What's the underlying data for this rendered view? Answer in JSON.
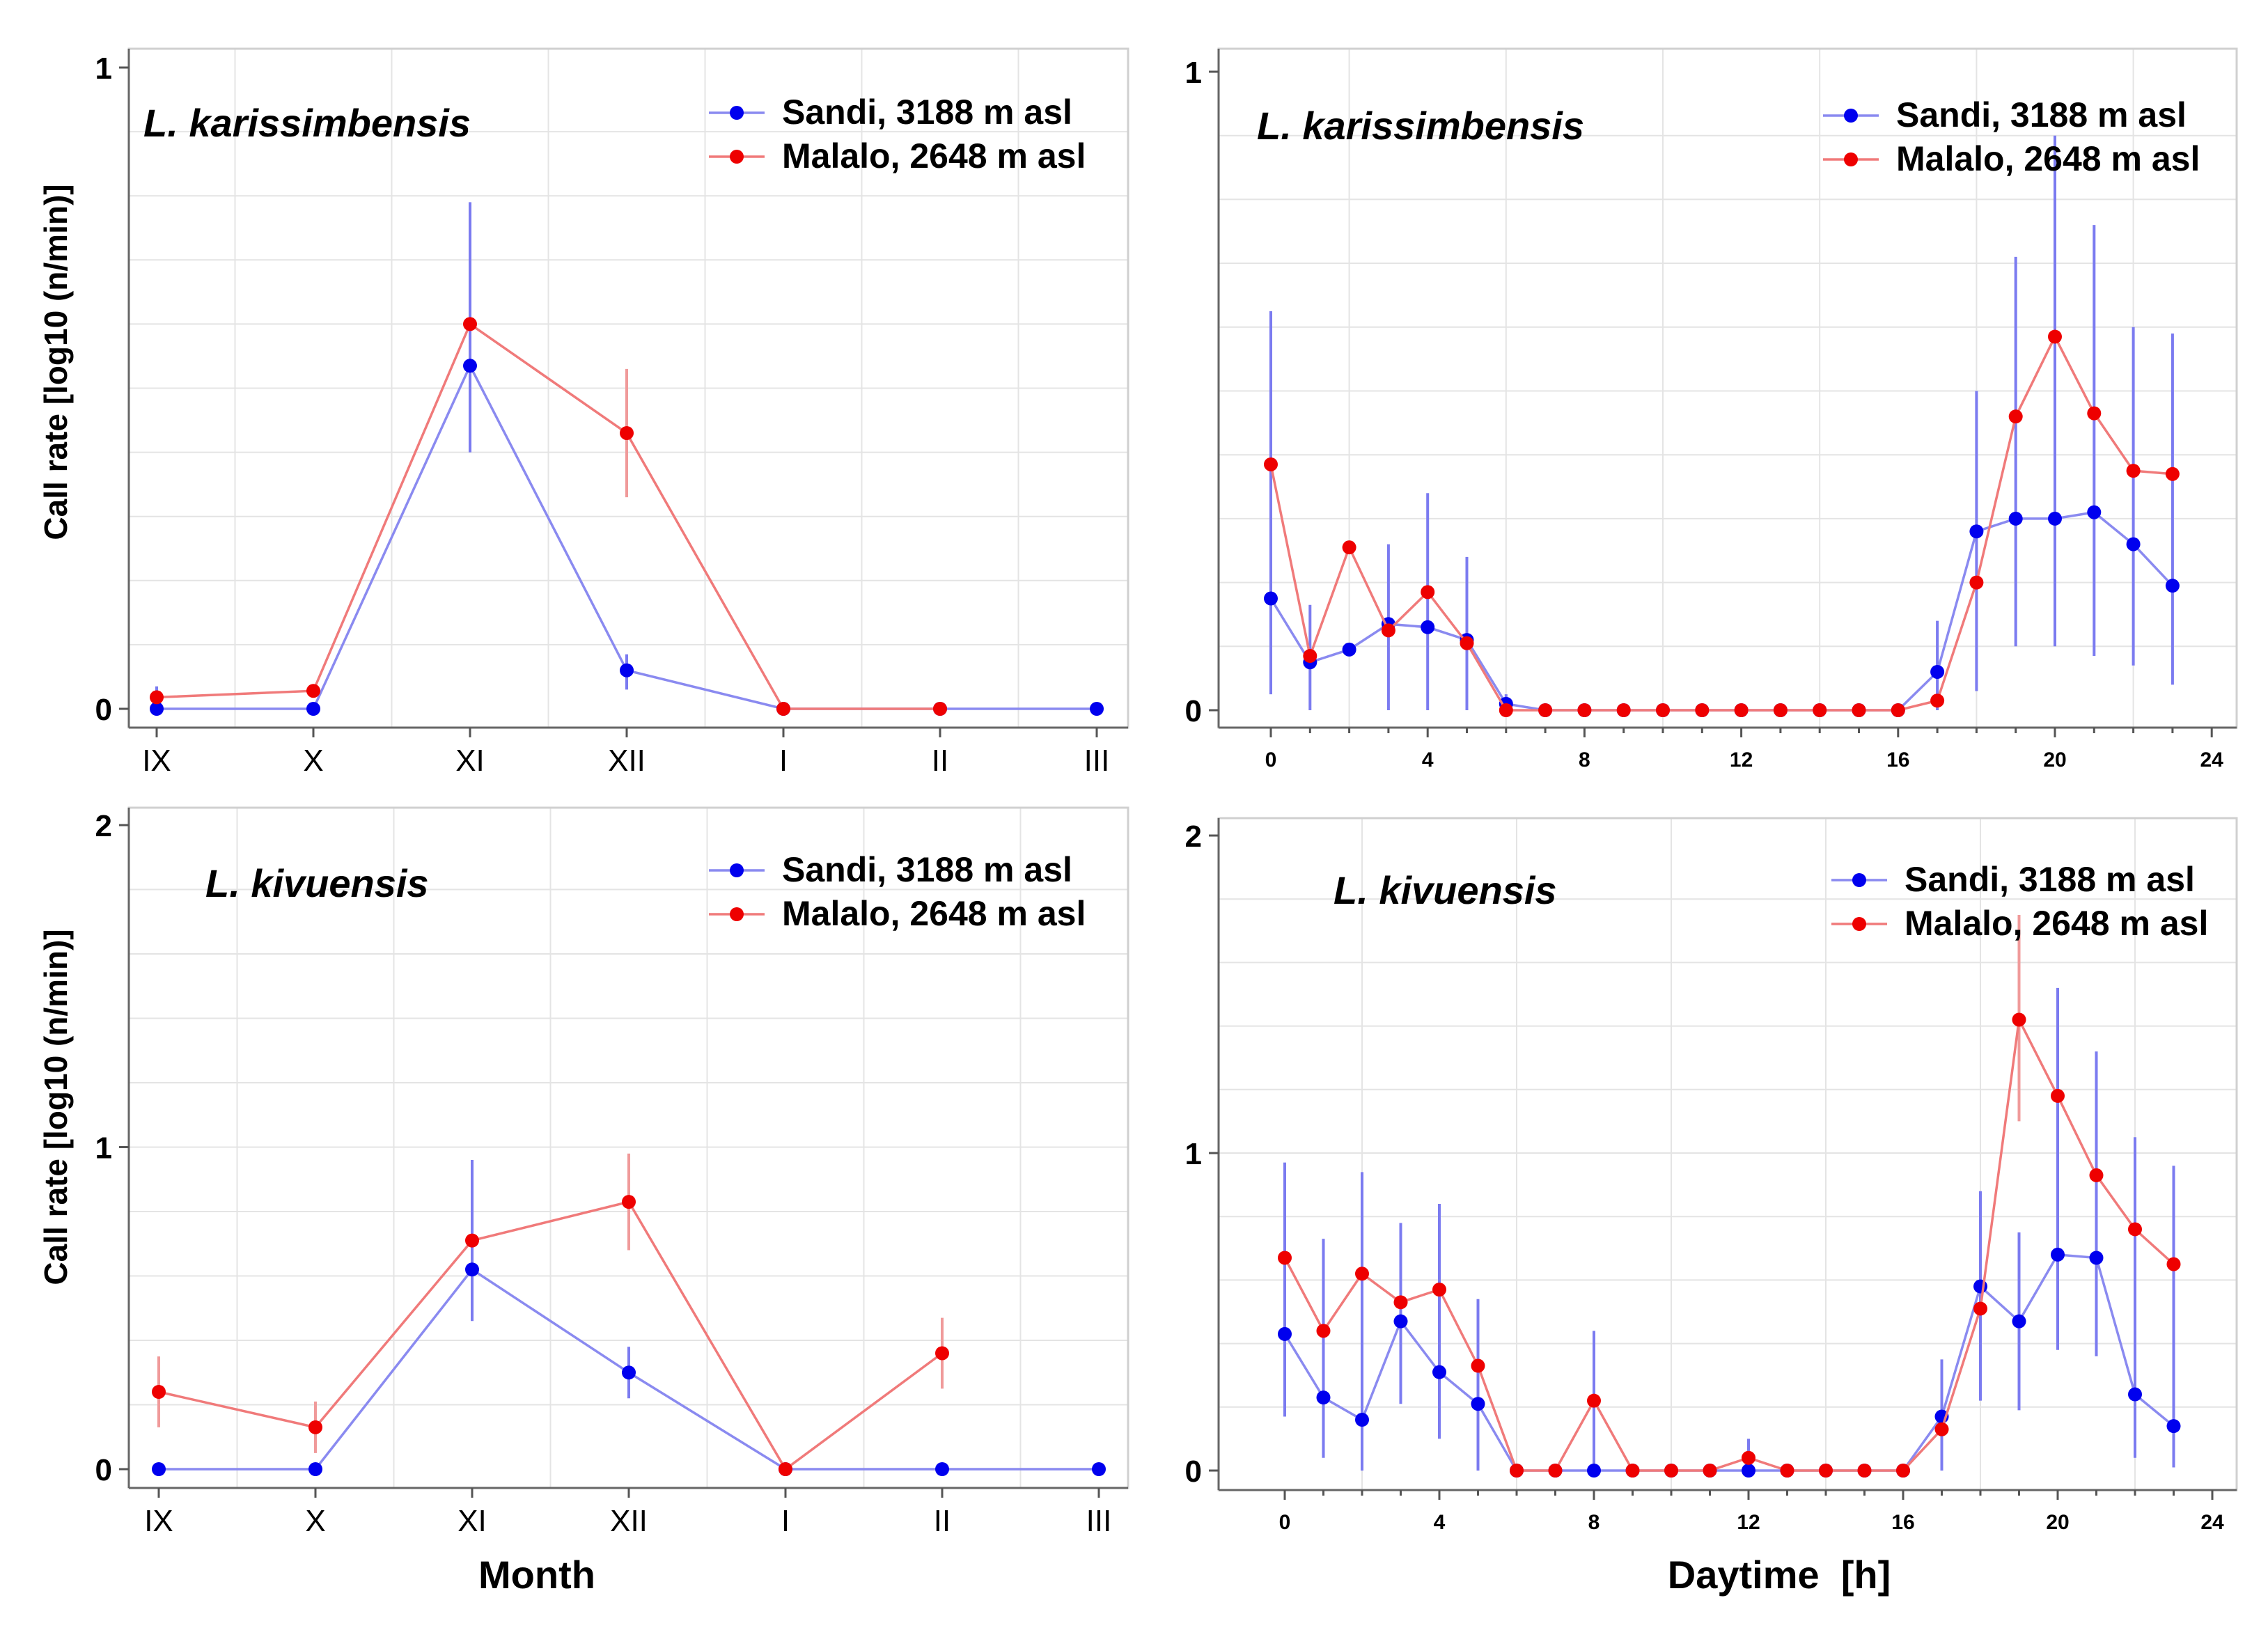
{
  "colors": {
    "sandi": "#0000ee",
    "malalo": "#ee0000",
    "sandi_line": "#8a8af0",
    "malalo_line": "#f07a7a",
    "sandi_err": "#7b7bf0",
    "malalo_err": "#f09a9a"
  },
  "axis_titles": {
    "y_top": "Call rate [log10 (n/min)]",
    "y_bottom": "Call rate [log10 (n/min)]",
    "x_left": "Month",
    "x_right": "Daytime  [h]"
  },
  "chart_data": [
    {
      "type": "line",
      "title": "L. karissimbensis",
      "x_axis": "month",
      "categories": [
        "IX",
        "X",
        "XI",
        "XII",
        "I",
        "II",
        "III"
      ],
      "ylim": [
        0,
        1
      ],
      "yticks": [
        "0",
        "1"
      ],
      "legend": "top-right",
      "series": [
        {
          "name": "Sandi, 3188 m asl",
          "key": "sandi",
          "values": [
            0,
            0,
            0.535,
            0.06,
            0,
            0,
            0
          ],
          "err": [
            [
              0,
              0.035
            ],
            null,
            [
              0.4,
              0.79
            ],
            [
              0.03,
              0.085
            ],
            null,
            null,
            null
          ]
        },
        {
          "name": "Malalo, 2648 m asl",
          "key": "malalo",
          "values": [
            0.018,
            0.028,
            0.6,
            0.43,
            0,
            0,
            null
          ],
          "err": [
            null,
            null,
            null,
            [
              0.33,
              0.53
            ],
            null,
            null,
            null
          ]
        }
      ]
    },
    {
      "type": "line",
      "title": "L. karissimbensis",
      "x_axis": "hour",
      "xlim": [
        -1,
        24.5
      ],
      "xticks": [
        0,
        4,
        8,
        12,
        16,
        20,
        24
      ],
      "ylim": [
        0,
        1
      ],
      "yticks": [
        "0",
        "1"
      ],
      "legend": "top-right",
      "series": [
        {
          "name": "Sandi, 3188 m asl",
          "key": "sandi",
          "x": [
            0,
            1,
            2,
            3,
            4,
            5,
            6,
            7,
            8,
            9,
            10,
            11,
            12,
            13,
            14,
            15,
            16,
            17,
            18,
            19,
            20,
            21,
            22,
            23
          ],
          "values": [
            0.175,
            0.075,
            0.095,
            0.135,
            0.13,
            0.11,
            0.01,
            0,
            0,
            0,
            0,
            0,
            0,
            0,
            0,
            0,
            0,
            0.06,
            0.28,
            0.3,
            0.3,
            0.31,
            0.26,
            0.195
          ],
          "err": [
            [
              0.025,
              0.625
            ],
            [
              0,
              0.165
            ],
            null,
            [
              0,
              0.26
            ],
            [
              0,
              0.34
            ],
            [
              0,
              0.24
            ],
            [
              0,
              0.025
            ],
            null,
            null,
            null,
            null,
            null,
            null,
            null,
            null,
            null,
            null,
            [
              0,
              0.14
            ],
            [
              0.03,
              0.5
            ],
            [
              0.1,
              0.71
            ],
            [
              0.1,
              0.9
            ],
            [
              0.085,
              0.76
            ],
            [
              0.07,
              0.6
            ],
            [
              0.04,
              0.59
            ]
          ]
        },
        {
          "name": "Malalo, 2648 m asl",
          "key": "malalo",
          "x": [
            0,
            1,
            2,
            3,
            4,
            5,
            6,
            7,
            8,
            9,
            10,
            11,
            12,
            13,
            14,
            15,
            16,
            17,
            18,
            19,
            20,
            21,
            22,
            23
          ],
          "values": [
            0.385,
            0.085,
            0.255,
            0.125,
            0.185,
            0.105,
            0,
            0,
            0,
            0,
            0,
            0,
            0,
            0,
            0,
            0,
            0,
            0.015,
            0.2,
            0.46,
            0.585,
            0.465,
            0.375,
            0.37
          ],
          "err": null
        }
      ]
    },
    {
      "type": "line",
      "title": "L. kivuensis",
      "x_axis": "month",
      "categories": [
        "IX",
        "X",
        "XI",
        "XII",
        "I",
        "II",
        "III"
      ],
      "ylim": [
        0,
        2
      ],
      "yticks": [
        "0",
        "1",
        "2"
      ],
      "legend": "top-right",
      "series": [
        {
          "name": "Sandi, 3188 m asl",
          "key": "sandi",
          "values": [
            0,
            0,
            0.62,
            0.3,
            0,
            0,
            0
          ],
          "err": [
            null,
            null,
            [
              0.46,
              0.96
            ],
            [
              0.22,
              0.38
            ],
            null,
            null,
            null
          ]
        },
        {
          "name": "Malalo, 2648 m asl",
          "key": "malalo",
          "values": [
            0.24,
            0.13,
            0.71,
            0.83,
            0,
            0.36,
            null
          ],
          "err": [
            [
              0.13,
              0.35
            ],
            [
              0.05,
              0.21
            ],
            null,
            [
              0.68,
              0.98
            ],
            null,
            [
              0.25,
              0.47
            ],
            null
          ]
        }
      ]
    },
    {
      "type": "line",
      "title": "L. kivuensis",
      "x_axis": "hour",
      "xlim": [
        -0.5,
        24.5
      ],
      "xticks": [
        0,
        4,
        8,
        12,
        16,
        20,
        24
      ],
      "ylim": [
        0,
        2
      ],
      "yticks": [
        "0",
        "1",
        "2"
      ],
      "legend": "top-right",
      "series": [
        {
          "name": "Sandi, 3188 m asl",
          "key": "sandi",
          "x": [
            0,
            1,
            2,
            3,
            4,
            5,
            6,
            7,
            8,
            9,
            10,
            11,
            12,
            13,
            14,
            15,
            16,
            17,
            18,
            19,
            20,
            21,
            22,
            23
          ],
          "values": [
            0.43,
            0.23,
            0.16,
            0.47,
            0.31,
            0.21,
            0,
            0,
            0,
            0,
            0,
            0,
            0,
            0,
            0,
            0,
            0,
            0.17,
            0.58,
            0.47,
            0.68,
            0.67,
            0.24,
            0.14
          ],
          "err": [
            [
              0.17,
              0.97
            ],
            [
              0.04,
              0.73
            ],
            [
              0,
              0.94
            ],
            [
              0.21,
              0.78
            ],
            [
              0.1,
              0.84
            ],
            [
              0,
              0.54
            ],
            null,
            null,
            [
              0,
              0.44
            ],
            null,
            null,
            null,
            [
              0,
              0.1
            ],
            null,
            null,
            null,
            null,
            [
              0,
              0.35
            ],
            [
              0.22,
              0.88
            ],
            [
              0.19,
              0.75
            ],
            [
              0.38,
              1.52
            ],
            [
              0.36,
              1.32
            ],
            [
              0.04,
              1.05
            ],
            [
              0.01,
              0.96
            ]
          ]
        },
        {
          "name": "Malalo, 2648 m asl",
          "key": "malalo",
          "x": [
            0,
            1,
            2,
            3,
            4,
            5,
            6,
            7,
            8,
            9,
            10,
            11,
            12,
            13,
            14,
            15,
            16,
            17,
            18,
            19,
            20,
            21,
            22,
            23
          ],
          "values": [
            0.67,
            0.44,
            0.62,
            0.53,
            0.57,
            0.33,
            0,
            0,
            0.22,
            0,
            0,
            0,
            0.04,
            0,
            0,
            0,
            0,
            0.13,
            0.51,
            1.42,
            1.18,
            0.93,
            0.76,
            0.65
          ],
          "err": [
            null,
            null,
            null,
            null,
            null,
            null,
            null,
            null,
            null,
            null,
            null,
            null,
            null,
            null,
            null,
            null,
            null,
            null,
            null,
            [
              1.1,
              1.75
            ],
            null,
            null,
            null,
            null
          ]
        }
      ]
    }
  ]
}
